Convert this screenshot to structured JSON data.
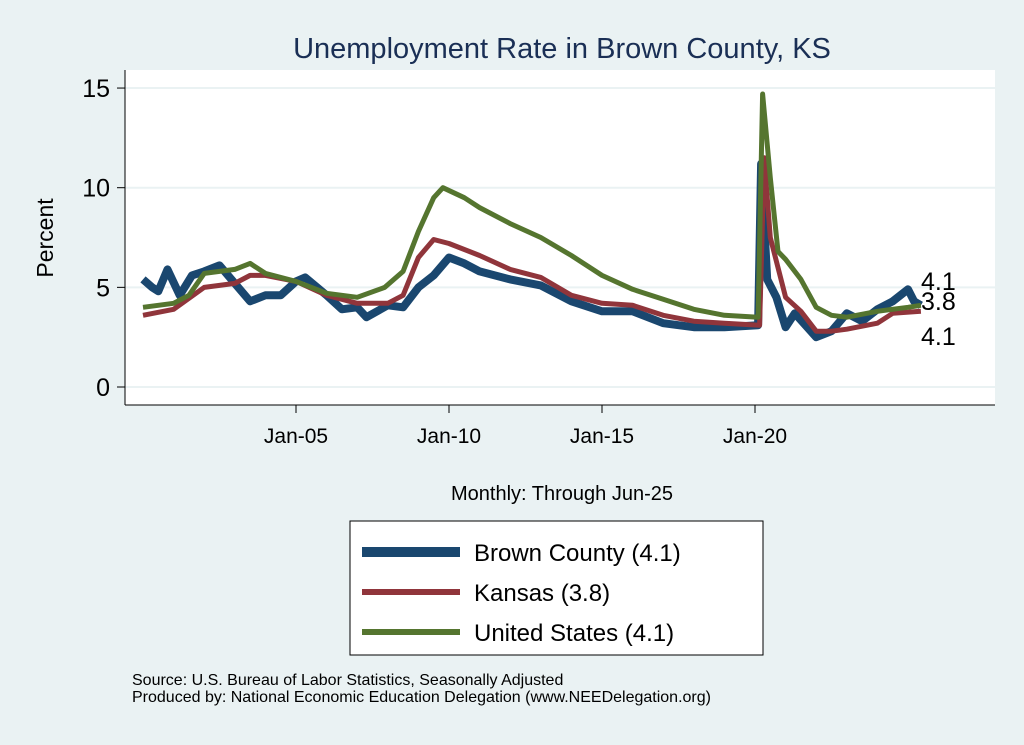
{
  "chart_data": {
    "type": "line",
    "title": "Unemployment Rate in Brown  County, KS",
    "xlabel": "Monthly: Through Jun-25",
    "ylabel": "Percent",
    "ylim": [
      0,
      15
    ],
    "xlim": [
      1999.5,
      2028
    ],
    "yticks": [
      0,
      5,
      10,
      15
    ],
    "xticks": [
      {
        "value": 2005,
        "label": "Jan-05"
      },
      {
        "value": 2010,
        "label": "Jan-10"
      },
      {
        "value": 2015,
        "label": "Jan-15"
      },
      {
        "value": 2020,
        "label": "Jan-20"
      }
    ],
    "grid": true,
    "legend_position": "bottom",
    "series": [
      {
        "name": "Brown  County (4.1)",
        "end_label": "4.1",
        "color": "#1a476f",
        "x": [
          2000,
          2000.3,
          2000.5,
          2000.8,
          2001.2,
          2001.6,
          2002,
          2002.5,
          2003,
          2003.5,
          2004,
          2004.5,
          2005,
          2005.3,
          2006,
          2006.5,
          2007,
          2007.3,
          2008,
          2008.5,
          2009,
          2009.5,
          2010,
          2010.5,
          2011,
          2012,
          2013,
          2014,
          2015,
          2016,
          2017,
          2018,
          2019,
          2020.1,
          2020.2,
          2020.4,
          2020.7,
          2021,
          2021.3,
          2022,
          2022.5,
          2023,
          2023.5,
          2024,
          2024.5,
          2025,
          2025.2,
          2025.42
        ],
        "y": [
          5.4,
          5.0,
          4.8,
          5.9,
          4.6,
          5.6,
          5.8,
          6.1,
          5.2,
          4.3,
          4.6,
          4.6,
          5.3,
          5.5,
          4.6,
          3.9,
          4.0,
          3.5,
          4.1,
          4.0,
          5.0,
          5.6,
          6.5,
          6.2,
          5.8,
          5.4,
          5.1,
          4.3,
          3.8,
          3.8,
          3.2,
          3.0,
          3.0,
          3.1,
          11.2,
          5.4,
          4.5,
          3.0,
          3.7,
          2.5,
          2.8,
          3.7,
          3.3,
          3.9,
          4.3,
          4.9,
          4.3,
          4.1
        ]
      },
      {
        "name": "Kansas (3.8)",
        "end_label": "3.8",
        "color": "#90353b",
        "x": [
          2000,
          2001,
          2002,
          2003,
          2003.5,
          2004,
          2005,
          2006,
          2007,
          2008,
          2008.5,
          2009,
          2009.5,
          2010,
          2011,
          2012,
          2013,
          2014,
          2015,
          2016,
          2017,
          2018,
          2019,
          2020.15,
          2020.3,
          2020.5,
          2021,
          2021.5,
          2022,
          2022.5,
          2023,
          2024,
          2024.5,
          2025.42
        ],
        "y": [
          3.6,
          3.9,
          5.0,
          5.2,
          5.6,
          5.6,
          5.3,
          4.6,
          4.2,
          4.2,
          4.6,
          6.5,
          7.4,
          7.2,
          6.6,
          5.9,
          5.5,
          4.6,
          4.2,
          4.1,
          3.6,
          3.3,
          3.2,
          3.1,
          11.5,
          7.5,
          4.5,
          3.8,
          2.8,
          2.8,
          2.9,
          3.2,
          3.7,
          3.8
        ]
      },
      {
        "name": "United States (4.1)",
        "end_label": "4.1",
        "color": "#55752f",
        "x": [
          2000,
          2001,
          2001.5,
          2002,
          2003,
          2003.5,
          2004,
          2005,
          2006,
          2007,
          2007.9,
          2008.5,
          2009,
          2009.5,
          2009.8,
          2010.5,
          2011,
          2012,
          2013,
          2014,
          2015,
          2016,
          2017,
          2018,
          2019,
          2020.1,
          2020.25,
          2020.5,
          2020.75,
          2021,
          2021.5,
          2022,
          2022.5,
          2023,
          2024,
          2025,
          2025.42
        ],
        "y": [
          4.0,
          4.2,
          4.6,
          5.7,
          5.9,
          6.2,
          5.7,
          5.3,
          4.7,
          4.5,
          5.0,
          5.8,
          7.8,
          9.5,
          10.0,
          9.5,
          9.0,
          8.2,
          7.5,
          6.6,
          5.6,
          4.9,
          4.4,
          3.9,
          3.6,
          3.5,
          14.7,
          10.5,
          6.8,
          6.4,
          5.4,
          4.0,
          3.6,
          3.5,
          3.8,
          4.0,
          4.1
        ]
      }
    ]
  },
  "notes": {
    "source": "Source: U.S. Bureau of Labor Statistics, Seasonally Adjusted",
    "producer": "Produced by: National Economic Education Delegation (www.NEEDelegation.org)"
  }
}
